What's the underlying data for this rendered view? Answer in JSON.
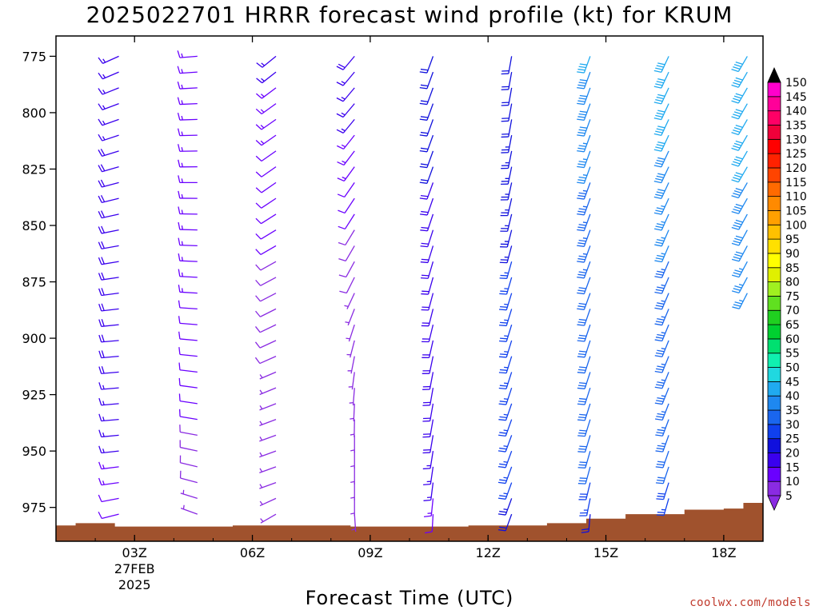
{
  "chart_data": {
    "type": "wind_profile",
    "title": "2025022701 HRRR forecast wind profile (kt) for KRUM",
    "xlabel": "Forecast Time (UTC)",
    "ylabel": "",
    "credit": "coolwx.com/models",
    "y_axis": {
      "range": [
        766,
        990
      ],
      "ticks": [
        775,
        800,
        825,
        850,
        875,
        900,
        925,
        950,
        975
      ]
    },
    "x_axis": {
      "range_hours": [
        1,
        19
      ],
      "ticks": [
        {
          "hour": 3,
          "label": "03Z",
          "sublabels": [
            "27FEB",
            "2025"
          ]
        },
        {
          "hour": 6,
          "label": "06Z"
        },
        {
          "hour": 9,
          "label": "09Z"
        },
        {
          "hour": 12,
          "label": "12Z"
        },
        {
          "hour": 15,
          "label": "15Z"
        },
        {
          "hour": 18,
          "label": "18Z"
        }
      ]
    },
    "colorbar": {
      "labels": [
        5,
        10,
        15,
        20,
        25,
        30,
        35,
        40,
        45,
        50,
        55,
        60,
        65,
        70,
        75,
        80,
        85,
        90,
        95,
        100,
        105,
        110,
        115,
        120,
        125,
        130,
        135,
        140,
        145,
        150
      ],
      "colors": [
        "#8a2be2",
        "#6a00ff",
        "#3a00ee",
        "#1010dd",
        "#1040ee",
        "#1a66ee",
        "#1e88f0",
        "#20aaf0",
        "#20d8e0",
        "#10f0b0",
        "#00e070",
        "#00d030",
        "#20d020",
        "#60e020",
        "#a0f020",
        "#e0f000",
        "#ffff00",
        "#ffe000",
        "#ffc000",
        "#ffa000",
        "#ff8a00",
        "#ff6a00",
        "#ff4400",
        "#ff2200",
        "#ff0000",
        "#f0003a",
        "#ff0066",
        "#ff0099",
        "#ff00cc",
        "#ff00ff"
      ],
      "top_color": "#000000"
    },
    "terrain": {
      "color": "#a0522d",
      "surface": [
        {
          "hour": 1.0,
          "p": 983
        },
        {
          "hour": 1.5,
          "p": 982
        },
        {
          "hour": 2.5,
          "p": 983.5
        },
        {
          "hour": 5.5,
          "p": 983
        },
        {
          "hour": 8.5,
          "p": 983.5
        },
        {
          "hour": 11.5,
          "p": 983
        },
        {
          "hour": 13.5,
          "p": 982
        },
        {
          "hour": 14.5,
          "p": 980
        },
        {
          "hour": 15.5,
          "p": 978
        },
        {
          "hour": 17.0,
          "p": 976
        },
        {
          "hour": 18.0,
          "p": 975.5
        },
        {
          "hour": 18.5,
          "p": 973
        }
      ]
    },
    "series": [
      {
        "hour": 2.6,
        "sfc": 980,
        "profile": [
          [
            770,
            245,
            15
          ],
          [
            800,
            250,
            17
          ],
          [
            830,
            255,
            18
          ],
          [
            860,
            260,
            18
          ],
          [
            900,
            265,
            18
          ],
          [
            940,
            265,
            17
          ],
          [
            965,
            262,
            14
          ],
          [
            980,
            255,
            10
          ]
        ]
      },
      {
        "hour": 4.6,
        "sfc": 982,
        "profile": [
          [
            770,
            265,
            15
          ],
          [
            800,
            268,
            14
          ],
          [
            830,
            270,
            14
          ],
          [
            860,
            272,
            13
          ],
          [
            900,
            275,
            12
          ],
          [
            940,
            280,
            10
          ],
          [
            965,
            285,
            8
          ],
          [
            978,
            290,
            6
          ],
          [
            982,
            250,
            5
          ]
        ]
      },
      {
        "hour": 6.6,
        "sfc": 982,
        "profile": [
          [
            770,
            230,
            16
          ],
          [
            800,
            235,
            14
          ],
          [
            830,
            235,
            11
          ],
          [
            860,
            240,
            10
          ],
          [
            900,
            245,
            8
          ],
          [
            940,
            250,
            6
          ],
          [
            965,
            250,
            6
          ],
          [
            978,
            240,
            6
          ],
          [
            982,
            230,
            5
          ]
        ]
      },
      {
        "hour": 8.6,
        "sfc": 983,
        "profile": [
          [
            775,
            220,
            18
          ],
          [
            800,
            220,
            16
          ],
          [
            830,
            215,
            12
          ],
          [
            860,
            210,
            9
          ],
          [
            880,
            205,
            7
          ],
          [
            900,
            195,
            6
          ],
          [
            920,
            185,
            6
          ],
          [
            940,
            180,
            6
          ],
          [
            960,
            180,
            6
          ],
          [
            975,
            180,
            6
          ],
          [
            983,
            170,
            5
          ]
        ]
      },
      {
        "hour": 10.6,
        "sfc": 983,
        "profile": [
          [
            775,
            200,
            20
          ],
          [
            800,
            200,
            20
          ],
          [
            830,
            200,
            20
          ],
          [
            860,
            197,
            19
          ],
          [
            880,
            195,
            19
          ],
          [
            900,
            193,
            19
          ],
          [
            920,
            190,
            18
          ],
          [
            940,
            190,
            18
          ],
          [
            960,
            188,
            16
          ],
          [
            975,
            185,
            13
          ],
          [
            983,
            180,
            10
          ]
        ]
      },
      {
        "hour": 12.6,
        "sfc": 982,
        "profile": [
          [
            775,
            190,
            20
          ],
          [
            800,
            190,
            22
          ],
          [
            830,
            192,
            24
          ],
          [
            860,
            195,
            25
          ],
          [
            880,
            197,
            25
          ],
          [
            900,
            197,
            26
          ],
          [
            920,
            198,
            27
          ],
          [
            940,
            200,
            27
          ],
          [
            960,
            200,
            27
          ],
          [
            975,
            200,
            23
          ],
          [
            980,
            200,
            20
          ]
        ]
      },
      {
        "hour": 14.6,
        "sfc": 980,
        "profile": [
          [
            775,
            200,
            40
          ],
          [
            800,
            200,
            38
          ],
          [
            830,
            200,
            35
          ],
          [
            860,
            200,
            33
          ],
          [
            880,
            200,
            32
          ],
          [
            900,
            198,
            32
          ],
          [
            920,
            198,
            32
          ],
          [
            940,
            197,
            32
          ],
          [
            960,
            195,
            30
          ],
          [
            975,
            190,
            26
          ],
          [
            978,
            185,
            22
          ]
        ]
      },
      {
        "hour": 16.6,
        "sfc": 977,
        "profile": [
          [
            775,
            205,
            42
          ],
          [
            800,
            205,
            41
          ],
          [
            830,
            205,
            38
          ],
          [
            860,
            203,
            35
          ],
          [
            880,
            203,
            34
          ],
          [
            900,
            202,
            34
          ],
          [
            920,
            202,
            34
          ],
          [
            940,
            200,
            33
          ],
          [
            960,
            198,
            30
          ],
          [
            975,
            195,
            25
          ]
        ]
      },
      {
        "hour": 18.6,
        "sfc": 974,
        "profile": [
          [
            775,
            210,
            42
          ],
          [
            800,
            210,
            42
          ],
          [
            830,
            210,
            40
          ],
          [
            860,
            208,
            38
          ],
          [
            875,
            208,
            36
          ],
          [
            880,
            207,
            35
          ]
        ]
      }
    ]
  }
}
